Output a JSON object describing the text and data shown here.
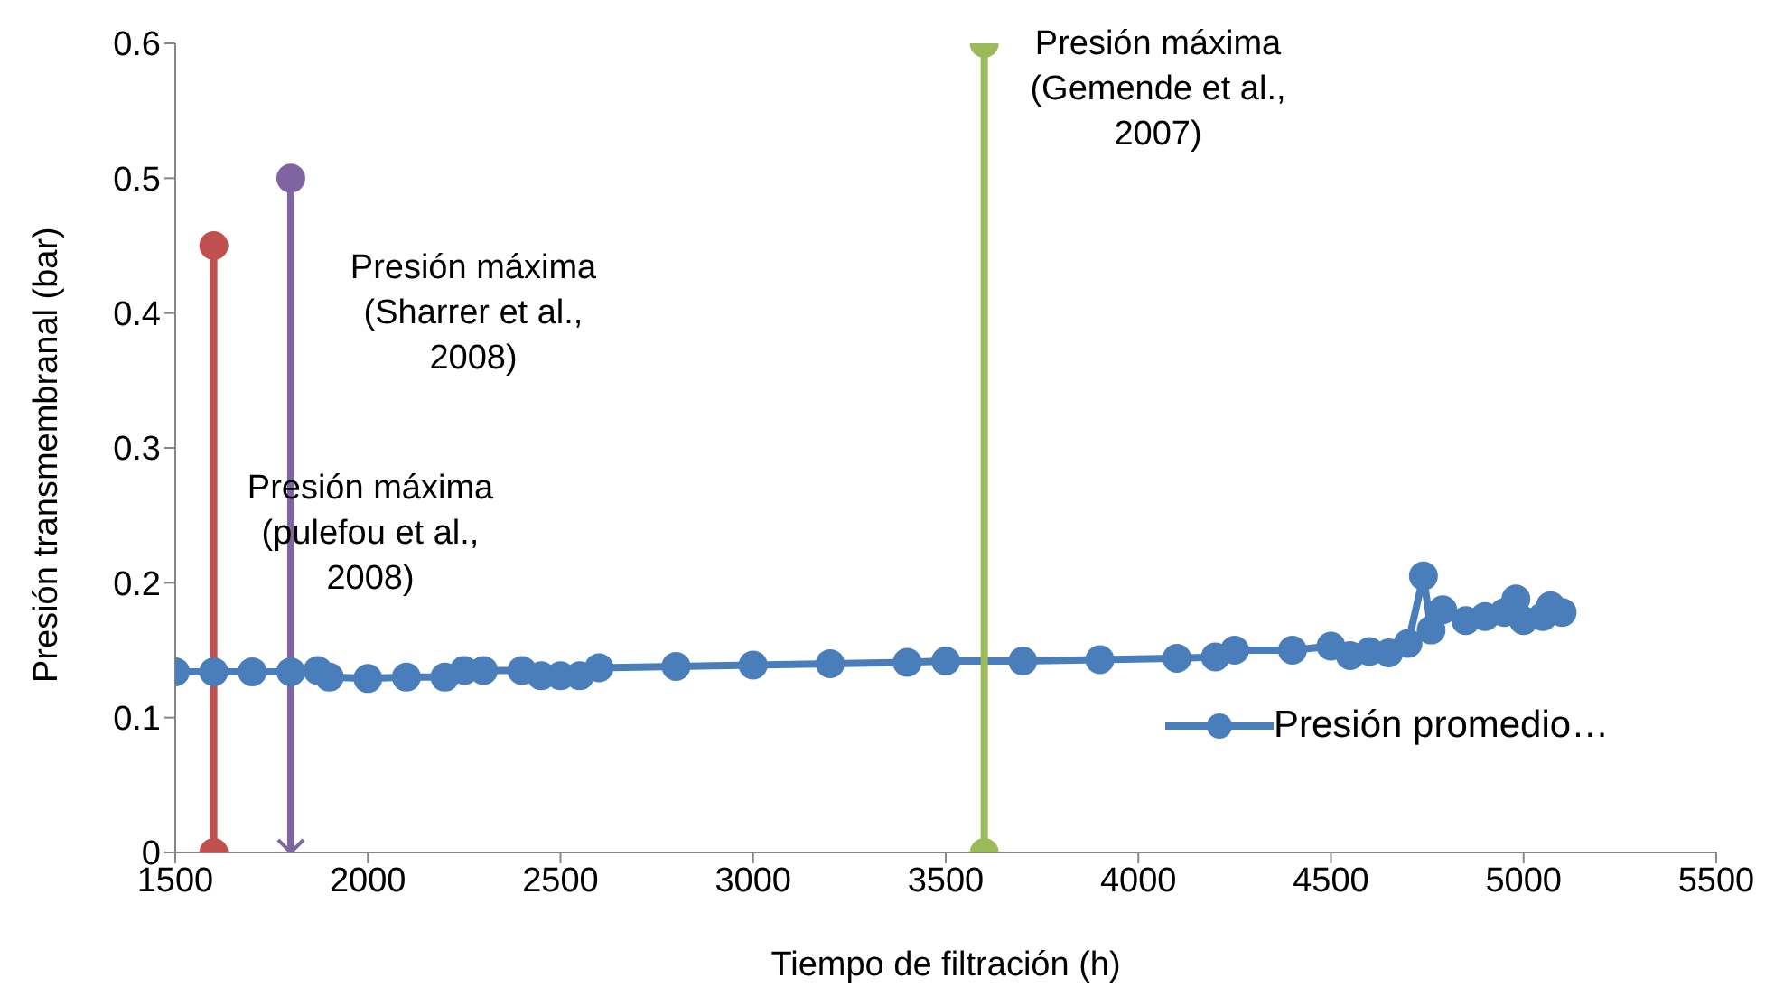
{
  "chart_data": {
    "type": "line",
    "xlabel": "Tiempo de filtración (h)",
    "ylabel": "Presión transmembranal (bar)",
    "xlim": [
      1500,
      5500
    ],
    "xticks": [
      1500,
      2000,
      2500,
      3000,
      3500,
      4000,
      4500,
      5000,
      5500
    ],
    "ylim": [
      0,
      0.6
    ],
    "yticks": [
      0,
      0.1,
      0.2,
      0.3,
      0.4,
      0.5,
      0.6
    ],
    "grid": false,
    "legend": "right",
    "marker": "circle",
    "series": [
      {
        "name": "Presión promedio…",
        "color": "#4a7ebb",
        "x": [
          1500,
          1600,
          1700,
          1800,
          1870,
          1900,
          2000,
          2100,
          2200,
          2250,
          2300,
          2400,
          2450,
          2500,
          2550,
          2600,
          2800,
          3000,
          3200,
          3400,
          3500,
          3700,
          3900,
          4100,
          4200,
          4250,
          4400,
          4500,
          4550,
          4600,
          4650,
          4700,
          4740,
          4760,
          4790,
          4850,
          4900,
          4950,
          4980,
          5000,
          5050,
          5070,
          5100
        ],
        "values": [
          0.134,
          0.134,
          0.134,
          0.134,
          0.135,
          0.13,
          0.129,
          0.13,
          0.13,
          0.135,
          0.135,
          0.135,
          0.131,
          0.131,
          0.131,
          0.137,
          0.138,
          0.139,
          0.14,
          0.141,
          0.142,
          0.142,
          0.143,
          0.144,
          0.145,
          0.15,
          0.15,
          0.153,
          0.146,
          0.149,
          0.148,
          0.155,
          0.205,
          0.165,
          0.18,
          0.172,
          0.175,
          0.178,
          0.188,
          0.172,
          0.175,
          0.183,
          0.178
        ]
      },
      {
        "color": "#c0504d",
        "x": [
          1600,
          1600
        ],
        "values": [
          0,
          0.45
        ]
      },
      {
        "color": "#8064a2",
        "marker": "none",
        "x": [
          1800,
          1800
        ],
        "values": [
          0,
          0.5
        ]
      },
      {
        "type": "scatter",
        "color": "#8064a2",
        "x": [
          1800
        ],
        "values": [
          0.5
        ]
      },
      {
        "type": "scatter",
        "color": "#8064a2",
        "marker": "cross",
        "x": [
          1800
        ],
        "values": [
          0
        ]
      },
      {
        "color": "#9bbb59",
        "x": [
          3600,
          3600
        ],
        "values": [
          0,
          0.6
        ]
      }
    ],
    "annotations": [
      "Presión máxima\n(pulefou et al.,\n2008)",
      "Presión máxima\n(Sharrer et al.,\n2008)",
      "Presión máxima\n(Gemende et al.,\n2007)"
    ]
  }
}
